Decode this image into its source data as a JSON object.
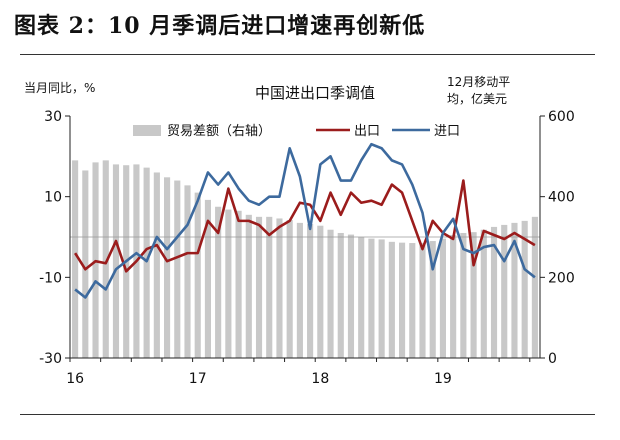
{
  "figure_title": "图表 2：10 月季调后进口增速再创新低",
  "chart_data": {
    "type": "bar+line",
    "title": "中国进出口季调值",
    "left_axis": {
      "unit_label": "当月同比，%",
      "ylim": [
        -30,
        30
      ],
      "ticks": [
        "30",
        "10",
        "-10",
        "-30"
      ]
    },
    "right_axis": {
      "unit_label_lines": [
        "12月移动平",
        "均，亿美元"
      ],
      "ylim": [
        0,
        600
      ],
      "ticks": [
        "600",
        "400",
        "200",
        "0"
      ]
    },
    "x_tick_labels": [
      "16",
      "17",
      "18",
      "19"
    ],
    "grid": false,
    "legend_placement": "top",
    "legend": [
      "贸易差额（右轴）",
      "出口",
      "进口"
    ],
    "months": [
      "2016-01",
      "2016-02",
      "2016-03",
      "2016-04",
      "2016-05",
      "2016-06",
      "2016-07",
      "2016-08",
      "2016-09",
      "2016-10",
      "2016-11",
      "2016-12",
      "2017-01",
      "2017-02",
      "2017-03",
      "2017-04",
      "2017-05",
      "2017-06",
      "2017-07",
      "2017-08",
      "2017-09",
      "2017-10",
      "2017-11",
      "2017-12",
      "2018-01",
      "2018-02",
      "2018-03",
      "2018-04",
      "2018-05",
      "2018-06",
      "2018-07",
      "2018-08",
      "2018-09",
      "2018-10",
      "2018-11",
      "2018-12",
      "2019-01",
      "2019-02",
      "2019-03",
      "2019-04",
      "2019-05",
      "2019-06",
      "2019-07",
      "2019-08",
      "2019-09",
      "2019-10"
    ],
    "series": [
      {
        "name": "贸易差额（右轴）",
        "axis": "right",
        "kind": "bar",
        "color": "#c8c8c8",
        "values": [
          490,
          465,
          485,
          490,
          480,
          478,
          480,
          472,
          460,
          448,
          440,
          428,
          410,
          392,
          375,
          368,
          365,
          355,
          350,
          350,
          346,
          342,
          335,
          332,
          328,
          318,
          310,
          306,
          300,
          296,
          294,
          288,
          286,
          285,
          285,
          290,
          296,
          305,
          310,
          312,
          318,
          325,
          330,
          335,
          340,
          350
        ]
      },
      {
        "name": "出口",
        "axis": "left",
        "kind": "line",
        "color": "#9b1c1c",
        "values": [
          -4,
          -8,
          -6,
          -6.5,
          -1,
          -8.5,
          -6,
          -3,
          -2,
          -6,
          -5,
          -4,
          -4,
          4,
          1,
          12,
          4,
          4,
          3,
          0.5,
          2.5,
          4,
          8.5,
          8,
          4,
          11,
          5.5,
          11,
          8.5,
          9,
          8,
          13,
          11,
          4,
          -3,
          4,
          1,
          -0.5,
          14,
          -7,
          1.5,
          0.5,
          -0.5,
          1,
          -0.5,
          -2
        ]
      },
      {
        "name": "进口",
        "axis": "left",
        "kind": "line",
        "color": "#3d6a9e",
        "values": [
          -13,
          -15,
          -11,
          -13,
          -8,
          -6,
          -4,
          -6,
          0,
          -3,
          0,
          3,
          9,
          16,
          13,
          16,
          12,
          9,
          8,
          10,
          10,
          22,
          15,
          2,
          18,
          20,
          14,
          14,
          19,
          23,
          22,
          19,
          18,
          13,
          6,
          -8,
          1,
          4.5,
          -3,
          -4,
          -2.5,
          -2,
          -6,
          -1,
          -8,
          -10
        ]
      }
    ]
  }
}
